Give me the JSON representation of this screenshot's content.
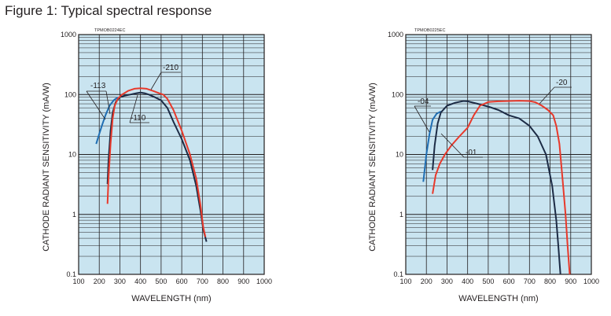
{
  "figure": {
    "title": "Figure 1: Typical spectral response"
  },
  "colors": {
    "grid_bg": "#c9e4f0",
    "grid_line": "#231f20",
    "red": "#e8392b",
    "blue": "#1f6eb3",
    "dark": "#1c2b45"
  },
  "chart_data": [
    {
      "type": "line",
      "code": "TPMOB0224EC",
      "xlabel": "WAVELENGTH (nm)",
      "ylabel": "CATHODE RADIANT SENSITIVITY (mA/W)",
      "xlim": [
        100,
        1000
      ],
      "ylim": [
        0.1,
        1000
      ],
      "yscale": "log",
      "xticks": [
        100,
        200,
        300,
        400,
        500,
        600,
        700,
        800,
        900,
        1000
      ],
      "yticks": [
        {
          "v": 0.1,
          "label": "0.1"
        },
        {
          "v": 1,
          "label": "1"
        },
        {
          "v": 10,
          "label": "10"
        },
        {
          "v": 100,
          "label": "100"
        },
        {
          "v": 1000,
          "label": "1000"
        }
      ],
      "series": [
        {
          "name": "-113",
          "color": "blue",
          "points": [
            [
              185,
              15
            ],
            [
              200,
              22
            ],
            [
              215,
              32
            ],
            [
              230,
              45
            ],
            [
              250,
              65
            ],
            [
              270,
              80
            ],
            [
              290,
              90
            ]
          ]
        },
        {
          "name": "-110",
          "color": "dark",
          "points": [
            [
              240,
              3.2
            ],
            [
              245,
              8
            ],
            [
              255,
              25
            ],
            [
              265,
              50
            ],
            [
              280,
              75
            ],
            [
              300,
              90
            ],
            [
              320,
              95
            ],
            [
              350,
              100
            ],
            [
              380,
              105
            ],
            [
              400,
              108
            ],
            [
              420,
              105
            ],
            [
              440,
              100
            ],
            [
              470,
              90
            ],
            [
              500,
              80
            ],
            [
              530,
              60
            ],
            [
              560,
              35
            ],
            [
              600,
              18
            ],
            [
              640,
              8
            ],
            [
              670,
              3
            ],
            [
              690,
              1.2
            ],
            [
              705,
              0.55
            ],
            [
              720,
              0.35
            ]
          ]
        },
        {
          "name": "-210",
          "color": "red",
          "points": [
            [
              240,
              1.5
            ],
            [
              245,
              4
            ],
            [
              255,
              15
            ],
            [
              265,
              40
            ],
            [
              275,
              65
            ],
            [
              290,
              85
            ],
            [
              310,
              100
            ],
            [
              340,
              115
            ],
            [
              370,
              125
            ],
            [
              400,
              127
            ],
            [
              430,
              125
            ],
            [
              460,
              115
            ],
            [
              490,
              105
            ],
            [
              510,
              100
            ],
            [
              530,
              85
            ],
            [
              560,
              55
            ],
            [
              600,
              25
            ],
            [
              640,
              10
            ],
            [
              670,
              4
            ],
            [
              690,
              1.5
            ],
            [
              705,
              0.6
            ],
            [
              715,
              0.42
            ]
          ]
        }
      ],
      "labels": [
        {
          "text": "-113"
        },
        {
          "text": "-110"
        },
        {
          "text": "-210"
        }
      ]
    },
    {
      "type": "line",
      "code": "TPMOB0225EC",
      "xlabel": "WAVELENGTH (nm)",
      "ylabel": "CATHODE RADIANT SENSITIVITY (mA/W)",
      "xlim": [
        100,
        1000
      ],
      "ylim": [
        0.1,
        1000
      ],
      "yscale": "log",
      "xticks": [
        100,
        200,
        300,
        400,
        500,
        600,
        700,
        800,
        900,
        1000
      ],
      "yticks": [
        {
          "v": 0.1,
          "label": "0.1"
        },
        {
          "v": 1,
          "label": "1"
        },
        {
          "v": 10,
          "label": "10"
        },
        {
          "v": 100,
          "label": "100"
        },
        {
          "v": 1000,
          "label": "1000"
        }
      ],
      "series": [
        {
          "name": "-04",
          "color": "blue",
          "points": [
            [
              185,
              3.5
            ],
            [
              200,
              10
            ],
            [
              215,
              22
            ],
            [
              230,
              38
            ],
            [
              250,
              48
            ],
            [
              270,
              52
            ]
          ]
        },
        {
          "name": "-01",
          "color": "dark",
          "points": [
            [
              230,
              5.5
            ],
            [
              240,
              14
            ],
            [
              255,
              33
            ],
            [
              270,
              50
            ],
            [
              300,
              65
            ],
            [
              340,
              73
            ],
            [
              380,
              78
            ],
            [
              400,
              77
            ],
            [
              450,
              70
            ],
            [
              500,
              63
            ],
            [
              550,
              55
            ],
            [
              600,
              45
            ],
            [
              650,
              40
            ],
            [
              700,
              30
            ],
            [
              740,
              20
            ],
            [
              780,
              10
            ],
            [
              810,
              3
            ],
            [
              830,
              0.8
            ],
            [
              840,
              0.3
            ],
            [
              850,
              0.1
            ]
          ]
        },
        {
          "name": "-20",
          "color": "red",
          "points": [
            [
              230,
              2.2
            ],
            [
              245,
              4.5
            ],
            [
              265,
              7
            ],
            [
              290,
              10
            ],
            [
              320,
              14
            ],
            [
              360,
              20
            ],
            [
              400,
              28
            ],
            [
              430,
              45
            ],
            [
              460,
              65
            ],
            [
              500,
              75
            ],
            [
              550,
              77
            ],
            [
              600,
              78
            ],
            [
              650,
              79
            ],
            [
              700,
              78
            ],
            [
              730,
              74
            ],
            [
              760,
              65
            ],
            [
              790,
              55
            ],
            [
              815,
              45
            ],
            [
              830,
              30
            ],
            [
              845,
              15
            ],
            [
              860,
              4
            ],
            [
              875,
              1
            ],
            [
              885,
              0.3
            ],
            [
              895,
              0.1
            ]
          ]
        }
      ],
      "labels": [
        {
          "text": "-04"
        },
        {
          "text": "-01"
        },
        {
          "text": "-20"
        }
      ]
    }
  ]
}
